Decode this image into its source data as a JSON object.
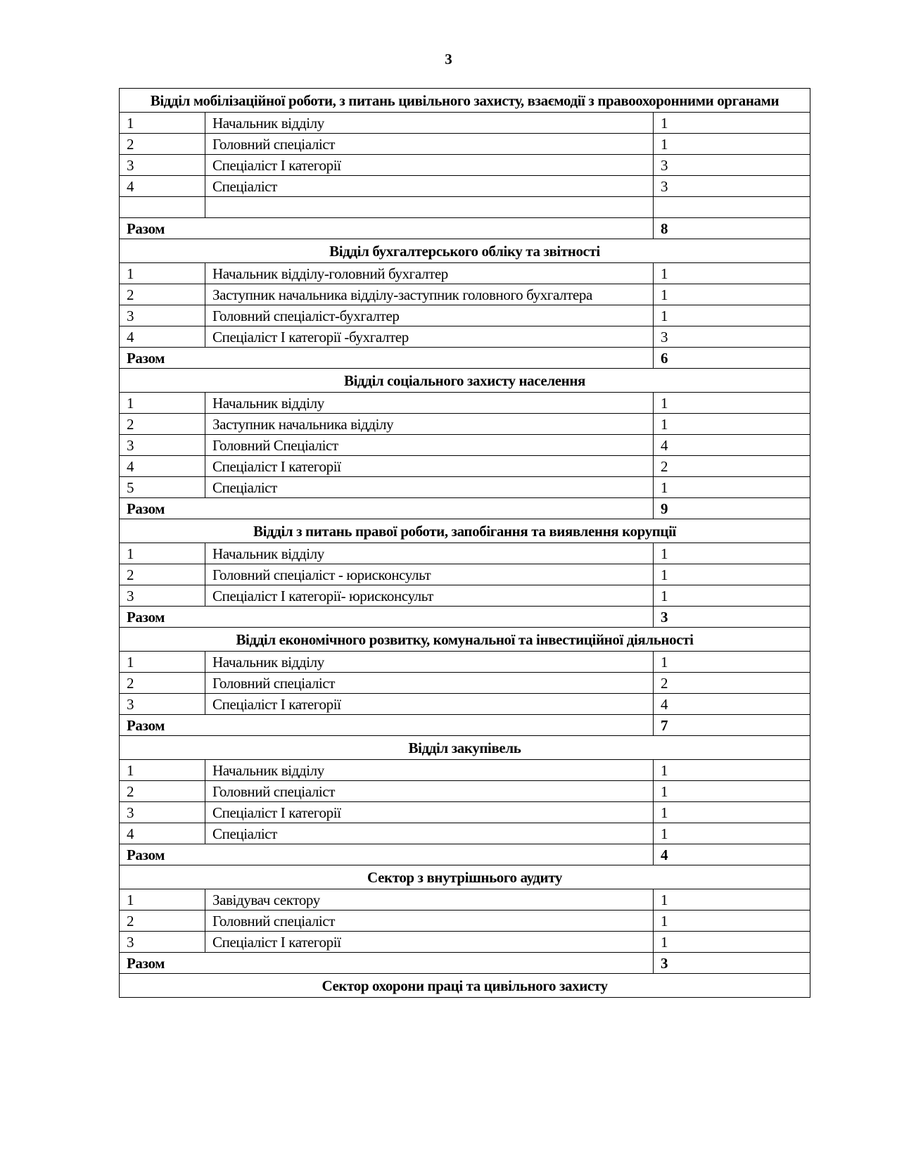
{
  "page_number": "3",
  "total_label": "Разом",
  "sections": [
    {
      "title": "Відділ мобілізаційної роботи, з питань цивільного захисту, взаємодії з правоохоронними органами",
      "rows": [
        [
          "1",
          "Начальник відділу",
          "1"
        ],
        [
          "2",
          "Головний спеціаліст",
          "1"
        ],
        [
          "3",
          "Спеціаліст І категорії",
          "3"
        ],
        [
          "4",
          "Спеціаліст",
          "3"
        ],
        [
          "",
          "",
          ""
        ]
      ],
      "total": "8"
    },
    {
      "title": "Відділ бухгалтерського обліку та звітності",
      "rows": [
        [
          "1",
          "Начальник відділу-головний бухгалтер",
          "1"
        ],
        [
          "2",
          "Заступник начальника відділу-заступник головного бухгалтера",
          "1"
        ],
        [
          "3",
          "Головний спеціаліст-бухгалтер",
          "1"
        ],
        [
          "4",
          "Спеціаліст І категорії -бухгалтер",
          "3"
        ]
      ],
      "total": "6"
    },
    {
      "title": "Відділ соціального захисту населення",
      "rows": [
        [
          "1",
          "Начальник відділу",
          "1"
        ],
        [
          "2",
          "Заступник начальника відділу",
          "1"
        ],
        [
          "3",
          "Головний Спеціаліст",
          "4"
        ],
        [
          "4",
          "Спеціаліст І категорії",
          "2"
        ],
        [
          "5",
          "Спеціаліст",
          "1"
        ]
      ],
      "total": "9"
    },
    {
      "title": "Відділ з питань правої роботи, запобігання та виявлення корупції",
      "rows": [
        [
          "1",
          "Начальник відділу",
          "1"
        ],
        [
          "2",
          "Головний спеціаліст - юрисконсульт",
          "1"
        ],
        [
          "3",
          "Спеціаліст І категорії- юрисконсульт",
          "1"
        ]
      ],
      "total": "3"
    },
    {
      "title": "Відділ економічного розвитку, комунальної та інвестиційної діяльності",
      "rows": [
        [
          "1",
          "Начальник відділу",
          "1"
        ],
        [
          "2",
          "Головний спеціаліст",
          "2"
        ],
        [
          "3",
          "Спеціаліст І категорії",
          "4"
        ]
      ],
      "total": "7"
    },
    {
      "title": "Відділ закупівель",
      "rows": [
        [
          "1",
          "Начальник відділу",
          "1"
        ],
        [
          "2",
          "Головний спеціаліст",
          "1"
        ],
        [
          "3",
          "Спеціаліст І категорії",
          "1"
        ],
        [
          "4",
          "Спеціаліст",
          "1"
        ]
      ],
      "total": "4"
    },
    {
      "title": "Сектор з внутрішнього аудиту",
      "rows": [
        [
          "1",
          "Завідувач сектору",
          "1"
        ],
        [
          "2",
          "Головний спеціаліст",
          "1"
        ],
        [
          "3",
          "Спеціаліст І категорії",
          "1"
        ]
      ],
      "total": "3"
    },
    {
      "title": "Сектор охорони праці та цивільного захисту",
      "rows": [],
      "total": null
    }
  ]
}
